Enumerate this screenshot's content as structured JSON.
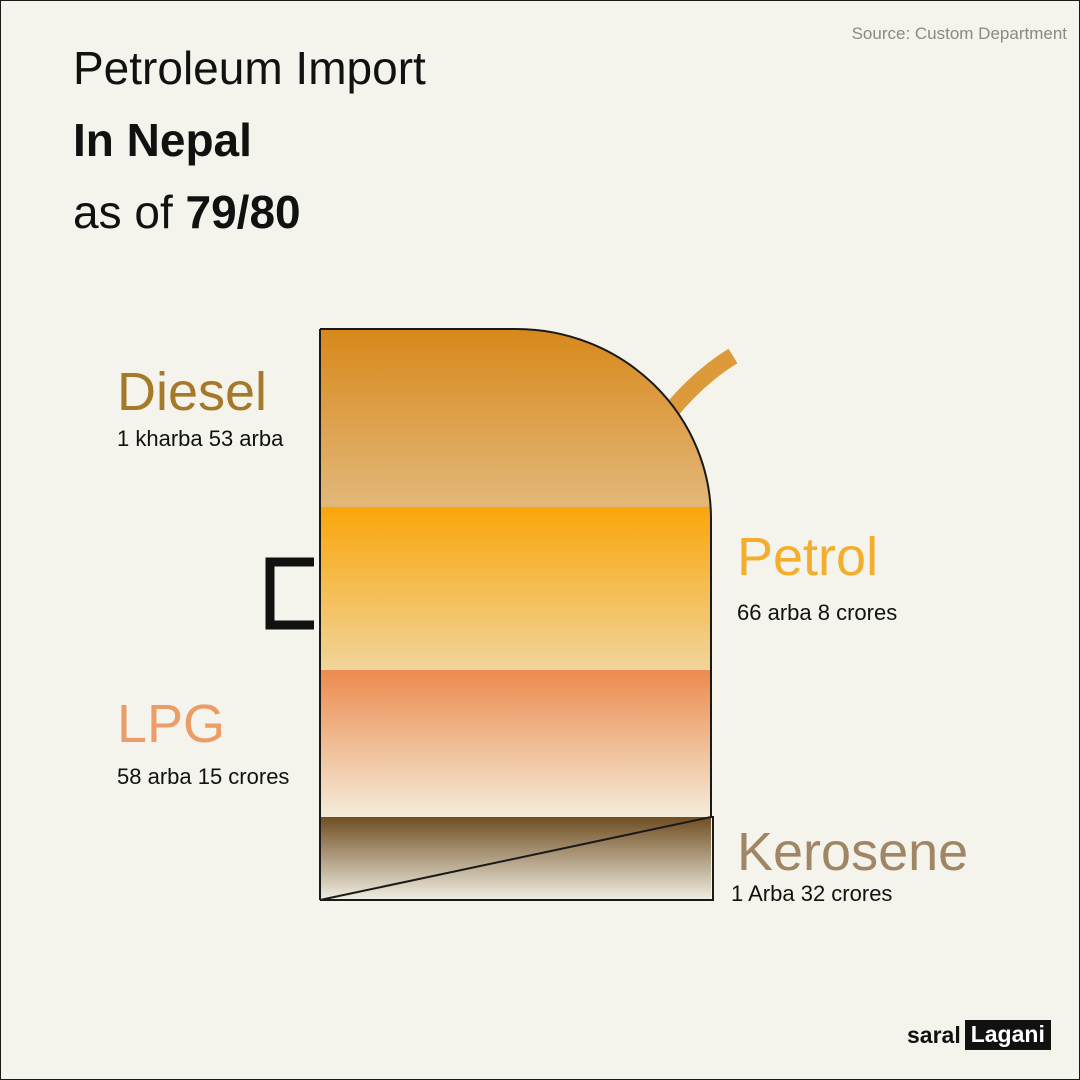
{
  "source": "Source: Custom Department",
  "title": {
    "line1": "Petroleum Import",
    "line2": "In Nepal",
    "line3_prefix": "as of ",
    "line3_bold": "79/80"
  },
  "chart_data": {
    "type": "pictorial-stacked",
    "series": [
      {
        "name": "Diesel",
        "value_label": "1 kharba 53 arba",
        "value_arba": 153,
        "color": "#d8881a"
      },
      {
        "name": "Petrol",
        "value_label": "66 arba 8 crores",
        "value_arba": 66.08,
        "color": "#f8a90e"
      },
      {
        "name": "LPG",
        "value_label": "58 arba 15 crores",
        "value_arba": 58.15,
        "color": "#ec8b4e"
      },
      {
        "name": "Kerosene",
        "value_label": "1 Arba 32 crores",
        "value_arba": 1.32,
        "color": "#6f4e22"
      }
    ],
    "label_colors": {
      "Diesel": "#a5782a",
      "Petrol": "#f4ae2c",
      "LPG": "#eb9c67",
      "Kerosene": "#a08665"
    }
  },
  "brand": {
    "part1": "saral",
    "part2": "Lagani"
  }
}
